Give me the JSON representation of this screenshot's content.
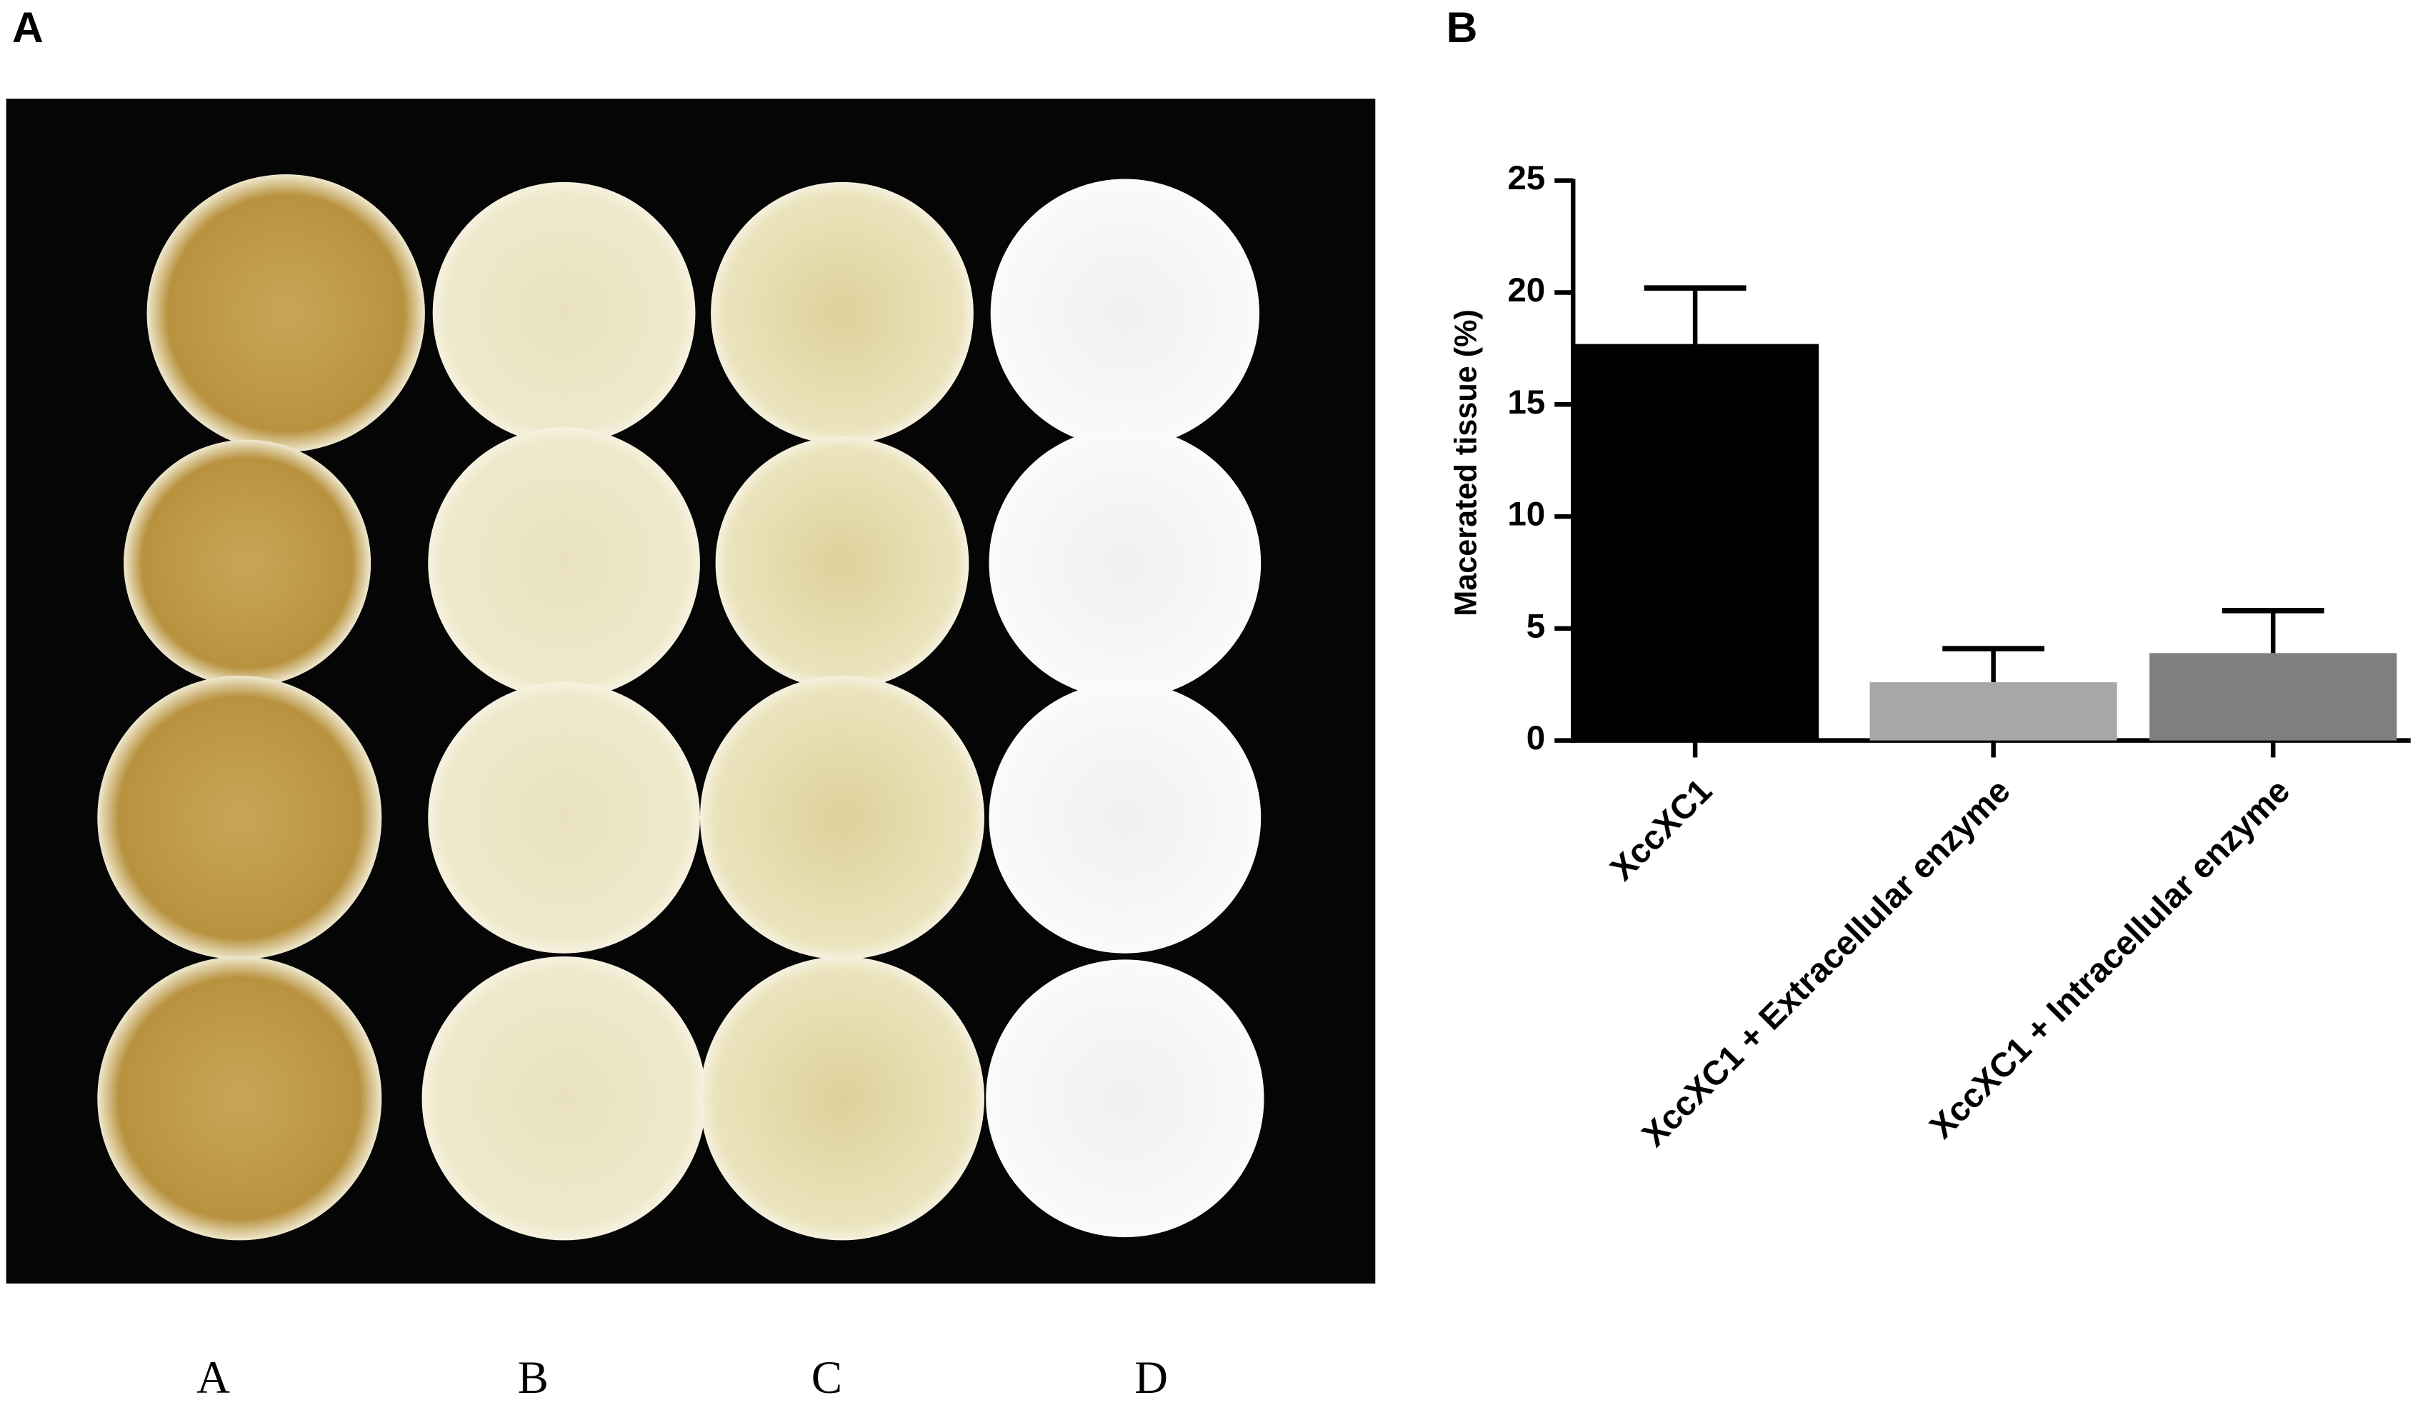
{
  "figure": {
    "panel_a_label": "A",
    "panel_b_label": "B",
    "photo_labels": [
      "A",
      "B",
      "C",
      "D"
    ]
  },
  "chart_data": {
    "type": "bar",
    "ylabel": "Macerated tissue (%)",
    "categories": [
      "XccXC1",
      "XccXC1 + Extracellular enzyme",
      "XccXC1 + Intracellular enzyme"
    ],
    "values": [
      17.7,
      2.6,
      3.9
    ],
    "errors": [
      2.5,
      1.5,
      1.9
    ],
    "colors": [
      "#000000",
      "#a7a7a9",
      "#7f7f7f"
    ],
    "ylim": [
      0,
      25
    ],
    "yticks": [
      0,
      5,
      10,
      15,
      20,
      25
    ]
  }
}
